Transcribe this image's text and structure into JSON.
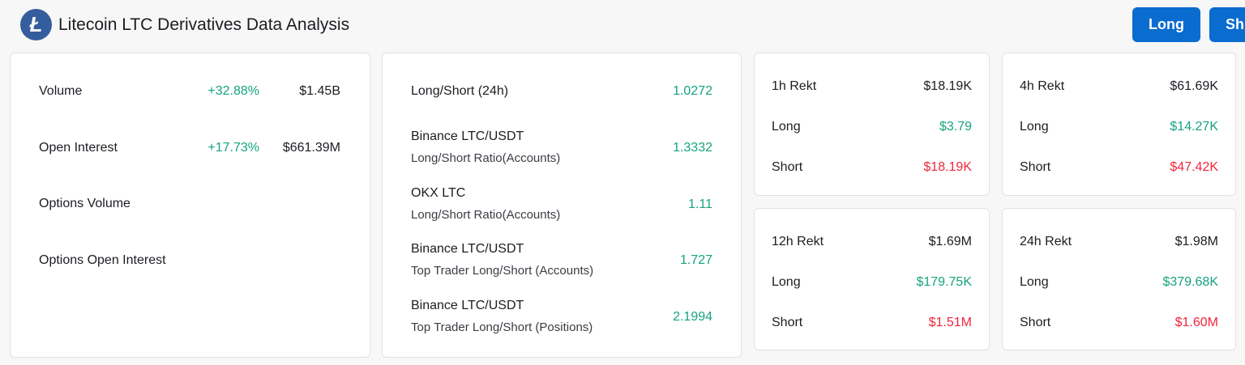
{
  "header": {
    "title": "Litecoin LTC Derivatives Data Analysis",
    "logo_letter": "Ł",
    "long_button": "Long",
    "short_button": "Sh"
  },
  "overview": [
    {
      "label": "Volume",
      "change": "+32.88%",
      "value": "$1.45B"
    },
    {
      "label": "Open Interest",
      "change": "+17.73%",
      "value": "$661.39M"
    },
    {
      "label": "Options Volume",
      "change": "",
      "value": ""
    },
    {
      "label": "Options Open Interest",
      "change": "",
      "value": ""
    }
  ],
  "ratios": [
    {
      "label": "Long/Short (24h)",
      "sub": "",
      "value": "1.0272"
    },
    {
      "label": "Binance LTC/USDT",
      "sub": "Long/Short Ratio(Accounts)",
      "value": "1.3332"
    },
    {
      "label": "OKX LTC",
      "sub": "Long/Short Ratio(Accounts)",
      "value": "1.11"
    },
    {
      "label": "Binance LTC/USDT",
      "sub": "Top Trader Long/Short (Accounts)",
      "value": "1.727"
    },
    {
      "label": "Binance LTC/USDT",
      "sub": "Top Trader Long/Short (Positions)",
      "value": "2.1994"
    }
  ],
  "rekt": [
    {
      "label": "1h Rekt",
      "total": "$18.19K",
      "long_label": "Long",
      "long": "$3.79",
      "short_label": "Short",
      "short": "$18.19K"
    },
    {
      "label": "4h Rekt",
      "total": "$61.69K",
      "long_label": "Long",
      "long": "$14.27K",
      "short_label": "Short",
      "short": "$47.42K"
    },
    {
      "label": "12h Rekt",
      "total": "$1.69M",
      "long_label": "Long",
      "long": "$179.75K",
      "short_label": "Short",
      "short": "$1.51M"
    },
    {
      "label": "24h Rekt",
      "total": "$1.98M",
      "long_label": "Long",
      "long": "$379.68K",
      "short_label": "Short",
      "short": "$1.60M"
    }
  ],
  "colors": {
    "positive": "#16a37f",
    "negative": "#f0263c",
    "accent": "#0a6ccf"
  }
}
